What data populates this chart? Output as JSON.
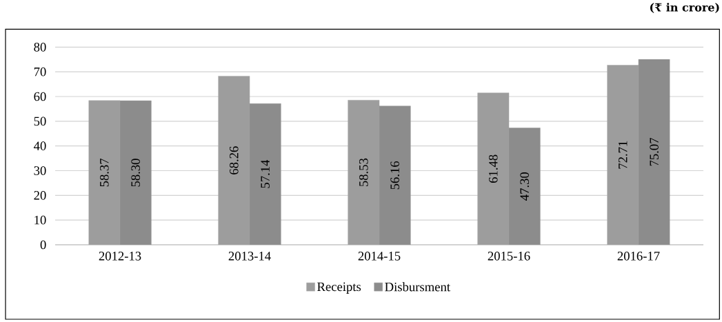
{
  "chart_data": {
    "type": "bar",
    "annotations": [
      "(₹ in crore)"
    ],
    "categories": [
      "2012-13",
      "2013-14",
      "2014-15",
      "2015-16",
      "2016-17"
    ],
    "series": [
      {
        "name": "Receipts",
        "color": "#9d9d9d",
        "values": [
          58.37,
          68.26,
          58.53,
          61.48,
          72.71
        ],
        "value_labels": [
          "58.37",
          "68.26",
          "58.53",
          "61.48",
          "72.71"
        ]
      },
      {
        "name": "Disbursment",
        "color": "#8c8c8c",
        "values": [
          58.3,
          57.14,
          56.16,
          47.3,
          75.07
        ],
        "value_labels": [
          "58.30",
          "57.14",
          "56.16",
          "47.30",
          "75.07"
        ]
      }
    ],
    "ylim": [
      0,
      80
    ],
    "yticks": [
      0,
      10,
      20,
      30,
      40,
      50,
      60,
      70,
      80
    ],
    "grid": "y",
    "legend": "bottom"
  }
}
